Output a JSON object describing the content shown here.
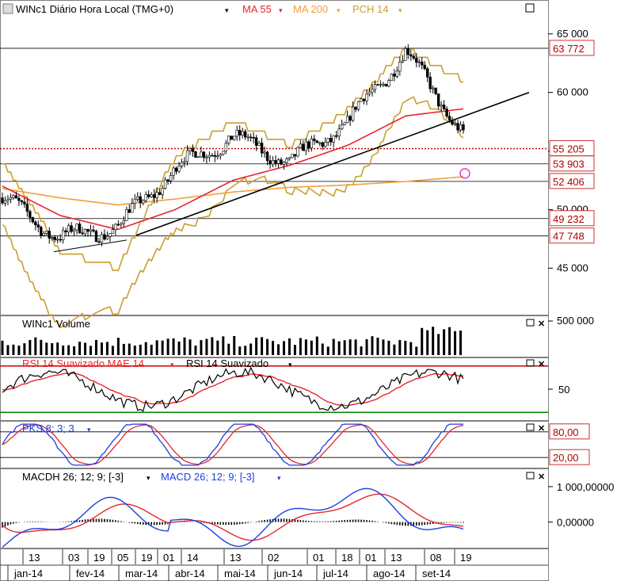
{
  "header": {
    "app_icon": "fx-icon",
    "symbol_title": "WINc1 Diário Hora Local (TMG+0)",
    "ma55_label": "MA 55",
    "ma200_label": "MA 200",
    "pch_label": "PCH 14"
  },
  "colors": {
    "price_up": "#000000",
    "price_down": "#000000",
    "ma55": "#e8262b",
    "ma200": "#f0a038",
    "pch": "#c8a030",
    "trendline": "#000000",
    "level_line": "#000000",
    "level_red_dotted": "#cc0000",
    "label_border": "#d03030",
    "label_text": "#b00000",
    "rsi_line": "#000000",
    "rsi_mae": "#e8262b",
    "rsi_top_line": "#cc0000",
    "rsi_bottom_line": "#008000",
    "pks_k": "#1c3fe0",
    "pks_d": "#e8262b",
    "macd_line": "#1c3fe0",
    "macd_signal": "#e8262b",
    "volume_bar": "#000000",
    "marker": "#e040c0"
  },
  "price_panel": {
    "axis_ticks": [
      "65 000",
      "60 000",
      "55 000",
      "50 000",
      "45 000"
    ],
    "level_labels": [
      "63 772",
      "55 205",
      "53 903",
      "52 406",
      "49 232",
      "47 748"
    ],
    "window_button": "maximize-window-icon"
  },
  "volume_panel": {
    "title": "WINc1 Volume",
    "axis_ticks": [
      "500 000"
    ]
  },
  "rsi_panel": {
    "title_mae": "RSI 14 Suavizado MAE 14",
    "title_rsi": "RSI 14 Suavizado",
    "axis_ticks": [
      "50"
    ]
  },
  "pks_panel": {
    "title": "PKS 8; 3; 3",
    "level_labels": [
      "80,00",
      "20,00"
    ]
  },
  "macd_panel": {
    "title_hist": "MACDH 26; 12; 9; [-3]",
    "title_macd": "MACD 26; 12; 9; [-3]",
    "axis_ticks": [
      "1 000,00000",
      "0,00000"
    ]
  },
  "time_axis": {
    "day_labels": [
      "13",
      "03",
      "19",
      "05",
      "19",
      "01",
      "14",
      "13",
      "02",
      "01",
      "18",
      "01",
      "13",
      "08",
      "19"
    ],
    "month_labels": [
      "jan-14",
      "fev-14",
      "mar-14",
      "abr-14",
      "mai-14",
      "jun-14",
      "jul-14",
      "ago-14",
      "set-14"
    ]
  },
  "chart_data": {
    "type": "line",
    "title": "WINc1 Diário Hora Local (TMG+0)",
    "xlabel": "",
    "ylabel": "",
    "ylim": [
      41500,
      66000
    ],
    "x": [
      "jan-14",
      "fev-14",
      "mar-14",
      "abr-14",
      "mai-14",
      "jun-14",
      "jul-14",
      "ago-14",
      "set-14"
    ],
    "series": [
      {
        "name": "WINc1",
        "values": [
          51000,
          47600,
          48500,
          53500,
          56200,
          54000,
          57500,
          63500,
          56500
        ]
      },
      {
        "name": "MA 55",
        "values": [
          52000,
          49500,
          48300,
          50000,
          52500,
          53800,
          55500,
          58000,
          58600
        ]
      },
      {
        "name": "MA 200",
        "values": [
          51800,
          51000,
          50400,
          50900,
          51500,
          51900,
          52100,
          52400,
          52800
        ]
      },
      {
        "name": "PCH 14",
        "values": [
          54200,
          46500,
          45000,
          54500,
          57500,
          55500,
          58500,
          63772,
          61000
        ]
      }
    ],
    "levels": [
      63772,
      55205,
      53903,
      52406,
      49232,
      47748
    ],
    "volume_max": 500000,
    "rsi_reference": 50,
    "pks_levels": [
      80,
      20
    ],
    "macd_reference": [
      1000,
      0
    ]
  }
}
